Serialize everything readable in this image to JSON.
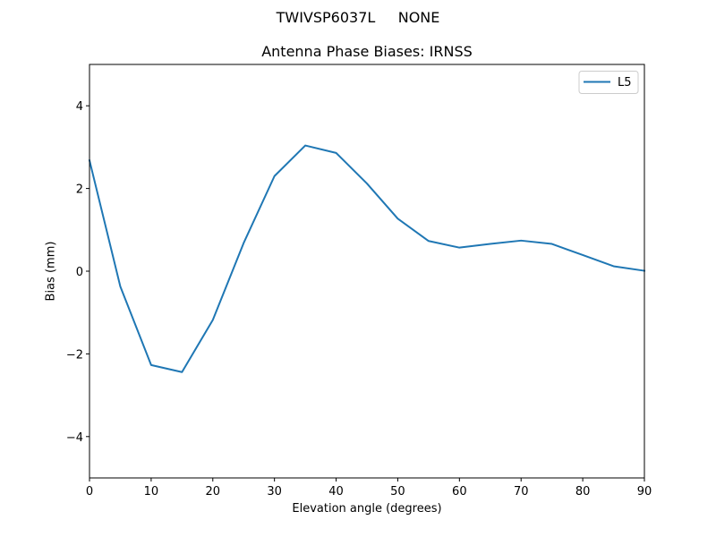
{
  "figure": {
    "suptitle": "TWIVSP6037L     NONE"
  },
  "chart_data": {
    "type": "line",
    "title": "Antenna Phase Biases: IRNSS",
    "xlabel": "Elevation angle (degrees)",
    "ylabel": "Bias (mm)",
    "xlim": [
      0,
      90
    ],
    "ylim": [
      -5,
      5
    ],
    "xticks": [
      0,
      10,
      20,
      30,
      40,
      50,
      60,
      70,
      80,
      90
    ],
    "yticks": [
      -4,
      -2,
      0,
      2,
      4
    ],
    "ytick_labels": [
      "−4",
      "−2",
      "0",
      "2",
      "4"
    ],
    "grid": false,
    "legend_position": "upper right",
    "x": [
      0,
      5,
      10,
      15,
      20,
      25,
      30,
      35,
      40,
      45,
      50,
      55,
      60,
      65,
      70,
      75,
      80,
      85,
      90
    ],
    "series": [
      {
        "name": "L5",
        "color": "#1f77b4",
        "values": [
          2.68,
          -0.37,
          -2.27,
          -2.44,
          -1.18,
          0.68,
          2.3,
          3.04,
          2.86,
          2.12,
          1.27,
          0.73,
          0.57,
          0.66,
          0.74,
          0.66,
          0.39,
          0.12,
          0.01
        ]
      }
    ]
  }
}
